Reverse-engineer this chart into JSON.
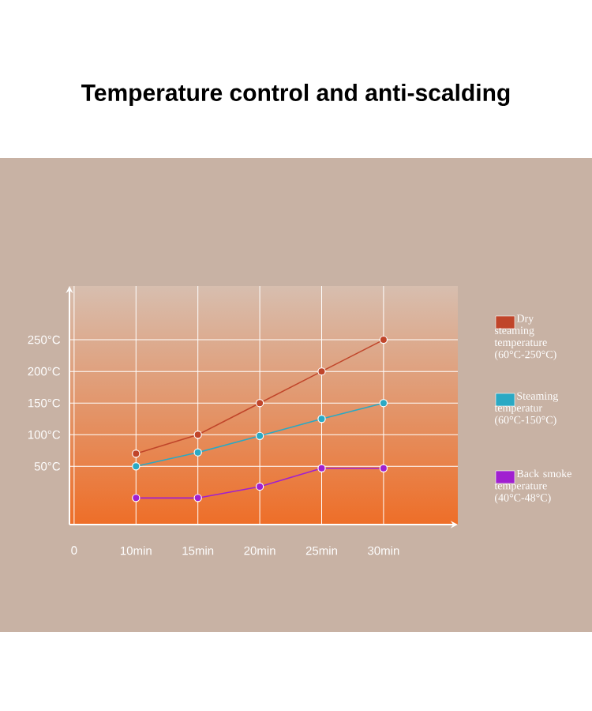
{
  "chart_data": {
    "type": "line",
    "title": "Temperature control and anti-scalding",
    "categories": [
      "0",
      "10min",
      "15min",
      "20min",
      "25min",
      "30min"
    ],
    "series": [
      {
        "name": "Dry steaming temperature (60°C-250°C)",
        "color": "#c0452a",
        "values": [
          null,
          70,
          100,
          150,
          200,
          250
        ]
      },
      {
        "name": "Steaming temperatur (60°C-150°C)",
        "color": "#2aa9c4",
        "values": [
          null,
          50,
          72,
          98,
          125,
          150
        ]
      },
      {
        "name": "Back smoke temperature (40°C-48°C)",
        "color": "#a020d0",
        "values": [
          null,
          0,
          0,
          18,
          47,
          47
        ]
      }
    ],
    "ylim": [
      -42,
      335
    ],
    "yticks": [
      {
        "value": 50,
        "label": "50°C"
      },
      {
        "value": 100,
        "label": "100°C"
      },
      {
        "value": 150,
        "label": "150°C"
      },
      {
        "value": 200,
        "label": "200°C"
      },
      {
        "value": 250,
        "label": "250°C"
      }
    ],
    "grid": true,
    "legend": "right",
    "marker": "circle",
    "line_style": "solid"
  }
}
